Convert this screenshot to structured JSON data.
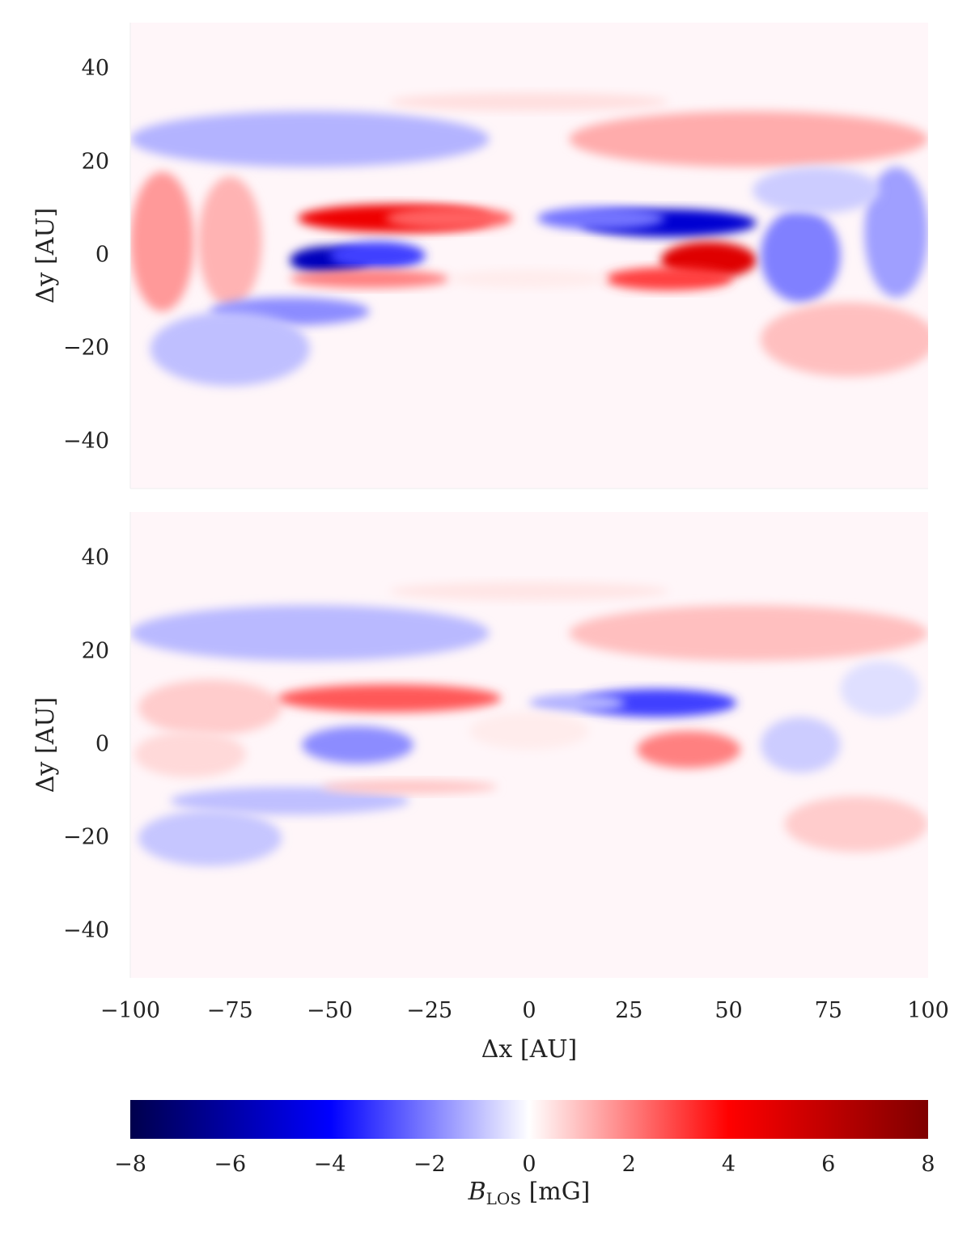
{
  "chart_data": {
    "type": "heatmap",
    "panels": [
      {
        "id": "top",
        "ylabel": "Δy [AU]",
        "xlim": [
          -100,
          100
        ],
        "ylim": [
          -50,
          50
        ],
        "yticks": [
          {
            "value": 40,
            "label": "40"
          },
          {
            "value": 20,
            "label": "20"
          },
          {
            "value": 0,
            "label": "0"
          },
          {
            "value": -20,
            "label": "−20"
          },
          {
            "value": -40,
            "label": "−40"
          }
        ],
        "features": [
          {
            "x": -55,
            "y": 25,
            "rx": 45,
            "ry": 6,
            "value": -1.2
          },
          {
            "x": 0,
            "y": 33,
            "rx": 35,
            "ry": 2,
            "value": 0.5
          },
          {
            "x": 55,
            "y": 25,
            "rx": 45,
            "ry": 6,
            "value": 1.3
          },
          {
            "x": -92,
            "y": 3,
            "rx": 8,
            "ry": 15,
            "value": 1.6
          },
          {
            "x": -75,
            "y": 3,
            "rx": 8,
            "ry": 14,
            "value": 1.2
          },
          {
            "x": -34,
            "y": 8,
            "rx": 24,
            "ry": 3,
            "value": 4.5
          },
          {
            "x": -20,
            "y": 8,
            "rx": 16,
            "ry": 2.5,
            "value": 2.5
          },
          {
            "x": -50,
            "y": -1,
            "rx": 10,
            "ry": 3,
            "value": -5.5
          },
          {
            "x": -38,
            "y": 0,
            "rx": 12,
            "ry": 3,
            "value": -3.0
          },
          {
            "x": -40,
            "y": -5,
            "rx": 20,
            "ry": 2,
            "value": 2.0
          },
          {
            "x": -60,
            "y": -12,
            "rx": 20,
            "ry": 3,
            "value": -1.8
          },
          {
            "x": -75,
            "y": -20,
            "rx": 20,
            "ry": 8,
            "value": -1.0
          },
          {
            "x": 35,
            "y": 7,
            "rx": 22,
            "ry": 3,
            "value": -5.0
          },
          {
            "x": 18,
            "y": 8,
            "rx": 16,
            "ry": 2.5,
            "value": -2.2
          },
          {
            "x": 45,
            "y": -1,
            "rx": 12,
            "ry": 4,
            "value": 5.0
          },
          {
            "x": 35,
            "y": -5,
            "rx": 16,
            "ry": 2.5,
            "value": 3.0
          },
          {
            "x": 68,
            "y": 0,
            "rx": 10,
            "ry": 10,
            "value": -2.0
          },
          {
            "x": 92,
            "y": 5,
            "rx": 8,
            "ry": 14,
            "value": -1.5
          },
          {
            "x": 72,
            "y": 14,
            "rx": 16,
            "ry": 5,
            "value": -0.8
          },
          {
            "x": 80,
            "y": -18,
            "rx": 22,
            "ry": 8,
            "value": 1.0
          },
          {
            "x": 0,
            "y": -5,
            "rx": 20,
            "ry": 2,
            "value": 0.3
          }
        ]
      },
      {
        "id": "bottom",
        "ylabel": "Δy [AU]",
        "xlabel": "Δx [AU]",
        "xlim": [
          -100,
          100
        ],
        "ylim": [
          -50,
          50
        ],
        "xticks": [
          {
            "value": -100,
            "label": "−100"
          },
          {
            "value": -75,
            "label": "−75"
          },
          {
            "value": -50,
            "label": "−50"
          },
          {
            "value": -25,
            "label": "−25"
          },
          {
            "value": 0,
            "label": "0"
          },
          {
            "value": 25,
            "label": "25"
          },
          {
            "value": 50,
            "label": "50"
          },
          {
            "value": 75,
            "label": "75"
          },
          {
            "value": 100,
            "label": "100"
          }
        ],
        "yticks": [
          {
            "value": 40,
            "label": "40"
          },
          {
            "value": 20,
            "label": "20"
          },
          {
            "value": 0,
            "label": "0"
          },
          {
            "value": -20,
            "label": "−20"
          },
          {
            "value": -40,
            "label": "−40"
          }
        ],
        "features": [
          {
            "x": -55,
            "y": 24,
            "rx": 45,
            "ry": 6,
            "value": -1.1
          },
          {
            "x": 55,
            "y": 24,
            "rx": 45,
            "ry": 6,
            "value": 1.0
          },
          {
            "x": 0,
            "y": 33,
            "rx": 35,
            "ry": 2,
            "value": 0.4
          },
          {
            "x": -80,
            "y": 8,
            "rx": 18,
            "ry": 6,
            "value": 0.8
          },
          {
            "x": -85,
            "y": -2,
            "rx": 14,
            "ry": 5,
            "value": 0.6
          },
          {
            "x": -35,
            "y": 10,
            "rx": 28,
            "ry": 3,
            "value": 2.6
          },
          {
            "x": -43,
            "y": 0,
            "rx": 14,
            "ry": 4,
            "value": -1.8
          },
          {
            "x": 32,
            "y": 9,
            "rx": 20,
            "ry": 3,
            "value": -3.0
          },
          {
            "x": 12,
            "y": 9,
            "rx": 12,
            "ry": 2,
            "value": -1.2
          },
          {
            "x": 40,
            "y": -1,
            "rx": 13,
            "ry": 4,
            "value": 2.0
          },
          {
            "x": 68,
            "y": 0,
            "rx": 10,
            "ry": 6,
            "value": -0.8
          },
          {
            "x": 88,
            "y": 12,
            "rx": 10,
            "ry": 6,
            "value": -0.5
          },
          {
            "x": -60,
            "y": -12,
            "rx": 30,
            "ry": 3,
            "value": -1.0
          },
          {
            "x": -80,
            "y": -20,
            "rx": 18,
            "ry": 6,
            "value": -0.9
          },
          {
            "x": -30,
            "y": -9,
            "rx": 22,
            "ry": 1.5,
            "value": 0.9
          },
          {
            "x": 82,
            "y": -17,
            "rx": 18,
            "ry": 6,
            "value": 0.8
          },
          {
            "x": 0,
            "y": 3,
            "rx": 15,
            "ry": 4,
            "value": 0.3
          }
        ]
      }
    ],
    "colorbar": {
      "colormap": "seismic",
      "min": -8,
      "max": 8,
      "ticks": [
        {
          "value": -8,
          "label": "−8"
        },
        {
          "value": -6,
          "label": "−6"
        },
        {
          "value": -4,
          "label": "−4"
        },
        {
          "value": -2,
          "label": "−2"
        },
        {
          "value": 0,
          "label": "0"
        },
        {
          "value": 2,
          "label": "2"
        },
        {
          "value": 4,
          "label": "4"
        },
        {
          "value": 6,
          "label": "6"
        },
        {
          "value": 8,
          "label": "8"
        }
      ],
      "label_main": "B",
      "label_sub": "LOS",
      "label_unit": " [mG]"
    },
    "grid": false,
    "background_color": "#fff6f9"
  }
}
